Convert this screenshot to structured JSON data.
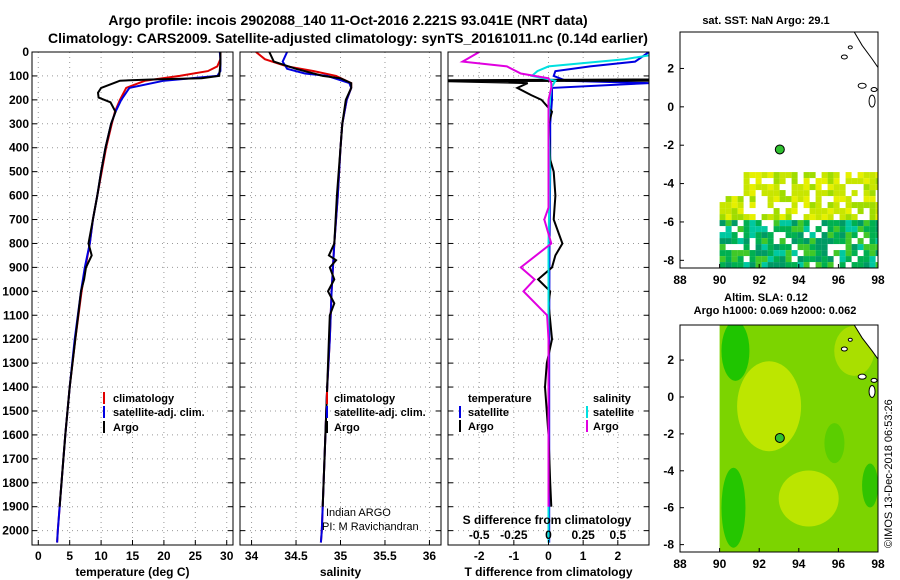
{
  "header": {
    "line1": "Argo profile: incois 2902088_140 11-Oct-2016 2.221S 93.041E (NRT data)",
    "line2": "Climatology: CARS2009. Satellite-adjusted climatology: synTS_20161011.nc (0.14d earlier)"
  },
  "colors": {
    "red": "#e00000",
    "blue": "#0000e0",
    "black": "#000000",
    "cyan": "#00e0e0",
    "magenta": "#e000e0"
  },
  "chart_data": [
    {
      "id": "temperature",
      "type": "line",
      "xlabel": "temperature (deg C)",
      "ylabel": "depth",
      "xlim": [
        -1,
        31
      ],
      "ylim": [
        2060,
        0
      ],
      "xticks": [
        0,
        5,
        10,
        15,
        20,
        25,
        30
      ],
      "xtick_labels": [
        "0",
        "5",
        "10",
        "15",
        "20",
        "25",
        "30"
      ],
      "yticks": [
        0,
        100,
        200,
        300,
        400,
        500,
        600,
        700,
        800,
        900,
        1000,
        1100,
        1200,
        1300,
        1400,
        1500,
        1600,
        1700,
        1800,
        1900,
        2000
      ],
      "ytick_labels": [
        "0",
        "100",
        "200",
        "300",
        "400",
        "500",
        "600",
        "700",
        "800",
        "900",
        "1000",
        "1100",
        "1200",
        "1300",
        "1400",
        "1500",
        "1600",
        "1700",
        "1800",
        "1900",
        "2000"
      ],
      "legend": [
        "climatology",
        "satellite-adj. clim.",
        "Argo"
      ],
      "series": [
        {
          "name": "climatology",
          "color": "red",
          "depth": [
            0,
            30,
            60,
            80,
            100,
            120,
            150,
            200,
            250,
            300,
            400,
            500,
            600,
            700,
            800,
            900,
            1000,
            1200,
            1400,
            1600,
            1800,
            2000,
            2050
          ],
          "x": [
            29,
            29,
            28.5,
            27,
            22.5,
            17,
            14,
            13,
            12.2,
            11.7,
            10.8,
            10.1,
            9.4,
            8.7,
            8.2,
            7.5,
            6.9,
            5.9,
            5.0,
            4.3,
            3.7,
            3.1,
            3.0
          ]
        },
        {
          "name": "satellite-adj. clim.",
          "color": "blue",
          "depth": [
            0,
            30,
            50,
            60,
            80,
            100,
            120,
            150,
            200,
            250,
            300,
            400,
            500,
            600,
            700,
            800,
            900,
            1000,
            1200,
            1400,
            1600,
            1800,
            2000,
            2050
          ],
          "x": [
            28.9,
            29,
            29,
            29,
            29,
            28.5,
            20,
            14.5,
            13.2,
            12.3,
            11.6,
            10.7,
            10,
            9.4,
            8.7,
            8.2,
            7.4,
            6.8,
            5.8,
            5,
            4.3,
            3.7,
            3.1,
            3.0
          ]
        },
        {
          "name": "Argo",
          "color": "black",
          "depth": [
            0,
            50,
            100,
            110,
            115,
            120,
            125,
            150,
            170,
            190,
            210,
            250,
            300,
            400,
            500,
            600,
            700,
            800,
            850,
            900,
            950,
            1000,
            1200,
            1400,
            1600,
            1800,
            1900
          ],
          "x": [
            29,
            29,
            28.8,
            26,
            18,
            13,
            12.5,
            10,
            9.5,
            9.6,
            11.5,
            12.3,
            11.6,
            10.7,
            10,
            9.4,
            8.7,
            8,
            8.5,
            7.6,
            7.3,
            6.8,
            5.9,
            5,
            4.3,
            3.7,
            3.4
          ]
        }
      ]
    },
    {
      "id": "salinity",
      "type": "line",
      "xlabel": "salinity",
      "xlim": [
        33.87,
        36.13
      ],
      "ylim": [
        2060,
        0
      ],
      "xticks": [
        34,
        34.5,
        35,
        35.5,
        36
      ],
      "xtick_labels": [
        "34",
        "34.5",
        "35",
        "35.5",
        "36"
      ],
      "legend": [
        "climatology",
        "satellite-adj. clim.",
        "Argo"
      ],
      "credit": [
        "Indian ARGO",
        "PI: M Ravichandran"
      ],
      "series": [
        {
          "name": "climatology",
          "color": "red",
          "depth": [
            0,
            30,
            60,
            80,
            100,
            130,
            150,
            200,
            300,
            400,
            600,
            800,
            1000,
            1200,
            1400,
            1600,
            1800,
            2000,
            2050
          ],
          "x": [
            34.05,
            34.15,
            34.4,
            34.7,
            34.95,
            35.12,
            35.12,
            35.07,
            35.02,
            35.0,
            34.97,
            34.93,
            34.9,
            34.88,
            34.85,
            34.83,
            34.81,
            34.79,
            34.78
          ]
        },
        {
          "name": "satellite-adj. clim.",
          "color": "blue",
          "depth": [
            0,
            40,
            70,
            90,
            100,
            130,
            150,
            200,
            300,
            400,
            600,
            800,
            1000,
            1200,
            1400,
            1600,
            1800,
            2000,
            2050
          ],
          "x": [
            34.4,
            34.35,
            34.4,
            34.6,
            34.85,
            35.1,
            35.12,
            35.07,
            35.02,
            35.0,
            34.97,
            34.93,
            34.9,
            34.88,
            34.85,
            34.83,
            34.81,
            34.79,
            34.78
          ]
        },
        {
          "name": "Argo",
          "color": "black",
          "depth": [
            0,
            40,
            70,
            100,
            110,
            130,
            150,
            200,
            300,
            400,
            600,
            800,
            850,
            870,
            900,
            950,
            1000,
            1050,
            1100,
            1200,
            1400,
            1600,
            1800,
            1900
          ],
          "x": [
            34.2,
            34.25,
            34.5,
            34.8,
            35.0,
            35.12,
            35.12,
            35.06,
            35.02,
            35.0,
            34.96,
            34.93,
            34.87,
            34.95,
            34.88,
            34.93,
            34.86,
            34.93,
            34.88,
            34.87,
            34.85,
            34.83,
            34.81,
            34.8
          ]
        }
      ]
    },
    {
      "id": "difference",
      "type": "line",
      "xlabel": "T difference from climatology",
      "top_label": "S difference from climatology",
      "xlim": [
        -2.9,
        2.9
      ],
      "ylim": [
        2060,
        0
      ],
      "xticks": [
        -2,
        -1,
        0,
        1,
        2
      ],
      "xtick_labels": [
        "-2",
        "-1",
        "0",
        "1",
        "2"
      ],
      "s_ticks": [
        -0.5,
        -0.25,
        0,
        0.25,
        0.5
      ],
      "s_tick_labels": [
        "-0.5",
        "-0.25",
        "0",
        "0.25",
        "0.5"
      ],
      "s_scale": 4,
      "legend_left": {
        "title": "temperature",
        "items": [
          "satellite",
          "Argo"
        ]
      },
      "legend_right": {
        "title": "salinity",
        "items": [
          "satellite",
          "Argo"
        ]
      },
      "series": [
        {
          "name": "T satellite",
          "color": "blue",
          "depth": [
            0,
            40,
            60,
            80,
            100,
            120,
            130,
            150,
            200,
            300,
            500,
            800,
            1200,
            1600,
            2050
          ],
          "x": [
            2.9,
            2.5,
            1.2,
            0.2,
            0.15,
            0.5,
            2.9,
            0.1,
            0.1,
            0.05,
            0.05,
            0.03,
            0.02,
            0.02,
            0.02
          ]
        },
        {
          "name": "T Argo",
          "color": "black",
          "depth": [
            115,
            118,
            120,
            122,
            130,
            150,
            180,
            200,
            250,
            300,
            450,
            500,
            600,
            700,
            760,
            800,
            850,
            900,
            950,
            1000,
            1050,
            1200,
            1300,
            1400,
            1600,
            1800,
            1900
          ],
          "x": [
            2.9,
            -2.9,
            2.9,
            -2.9,
            -0.6,
            -0.9,
            -0.5,
            -0.2,
            0.1,
            0,
            0.05,
            0.15,
            0.2,
            0.15,
            0.3,
            0.4,
            0.2,
            0.1,
            -0.3,
            0.05,
            0,
            0.1,
            -0.05,
            -0.1,
            0,
            0.05,
            0.08
          ]
        },
        {
          "name": "S satellite",
          "color": "cyan",
          "depth": [
            0,
            30,
            60,
            80,
            100,
            120,
            150,
            200,
            300,
            500,
            800,
            1200,
            1600,
            2050
          ],
          "x": [
            0.88,
            0.55,
            0.0,
            -0.08,
            -0.12,
            0.05,
            0.02,
            0.01,
            0.0,
            0.01,
            0.0,
            0.0,
            0.0,
            0.0
          ]
        },
        {
          "name": "S Argo",
          "color": "magenta",
          "depth": [
            0,
            40,
            60,
            90,
            110,
            130,
            150,
            200,
            300,
            500,
            650,
            700,
            800,
            900,
            950,
            1000,
            1100,
            1200,
            1600,
            1900
          ],
          "x": [
            -0.5,
            -0.62,
            -0.3,
            -0.2,
            0.0,
            0.02,
            0.02,
            0.0,
            0.0,
            0.0,
            0.0,
            -0.03,
            0.02,
            -0.2,
            -0.1,
            -0.18,
            -0.01,
            0.0,
            0.0,
            0.0
          ]
        }
      ]
    },
    {
      "id": "sst_map",
      "type": "heatmap",
      "title": "sat. SST: NaN Argo: 29.1",
      "xlim": [
        88,
        98
      ],
      "ylim": [
        -8.4,
        3.9
      ],
      "xticks": [
        88,
        90,
        92,
        94,
        96,
        98
      ],
      "xtick_labels": [
        "88",
        "90",
        "92",
        "94",
        "96",
        "98"
      ],
      "yticks": [
        -8,
        -6,
        -4,
        -2,
        0,
        2
      ],
      "ytick_labels": [
        "-8",
        "-6",
        "-4",
        "-2",
        "0",
        "2"
      ],
      "argo_position": {
        "lon": 93.041,
        "lat": -2.221
      }
    },
    {
      "id": "sla_map",
      "type": "heatmap",
      "title": "Altim. SLA: 0.12",
      "subtitle": "Argo h1000: 0.069 h2000: 0.062",
      "xlim": [
        88,
        98
      ],
      "ylim": [
        -8.4,
        3.9
      ],
      "xticks": [
        88,
        90,
        92,
        94,
        96,
        98
      ],
      "xtick_labels": [
        "88",
        "90",
        "92",
        "94",
        "96",
        "98"
      ],
      "yticks": [
        -8,
        -6,
        -4,
        -2,
        0,
        2
      ],
      "ytick_labels": [
        "-8",
        "-6",
        "-4",
        "-2",
        "0",
        "2"
      ],
      "argo_position": {
        "lon": 93.041,
        "lat": -2.221
      }
    }
  ],
  "footer": {
    "stamp": "©IMOS 13-Dec-2018 06:53:26"
  }
}
